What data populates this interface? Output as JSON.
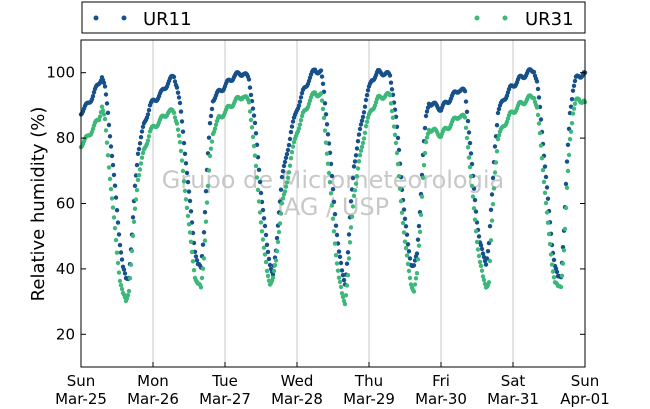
{
  "chart_data": {
    "type": "scatter",
    "ylabel": "Relative humidity (%)",
    "ylim": [
      10,
      110
    ],
    "yticks": [
      20,
      40,
      60,
      80,
      100
    ],
    "xlim": [
      "2018-03-25",
      "2018-04-01"
    ],
    "xticks": [
      {
        "line1": "Sun",
        "line2": "Mar-25"
      },
      {
        "line1": "Mon",
        "line2": "Mar-26"
      },
      {
        "line1": "Tue",
        "line2": "Mar-27"
      },
      {
        "line1": "Wed",
        "line2": "Mar-28"
      },
      {
        "line1": "Thu",
        "line2": "Mar-29"
      },
      {
        "line1": "Fri",
        "line2": "Mar-30"
      },
      {
        "line1": "Sat",
        "line2": "Mar-31"
      },
      {
        "line1": "Sun",
        "line2": "Apr-01"
      }
    ],
    "grid": "vertical",
    "legend_position": "top",
    "watermark": [
      "Grupo de Micrometeorologia",
      "IAG / USP"
    ],
    "series": [
      {
        "name": "UR11",
        "color": "#17508a",
        "points": [
          [
            "2018-03-25 00:00",
            88
          ],
          [
            "2018-03-25 02:00",
            90
          ],
          [
            "2018-03-25 04:00",
            93
          ],
          [
            "2018-03-25 06:00",
            97
          ],
          [
            "2018-03-25 07:00",
            99
          ],
          [
            "2018-03-25 08:00",
            95
          ],
          [
            "2018-03-25 09:00",
            88
          ],
          [
            "2018-03-25 10:00",
            78
          ],
          [
            "2018-03-25 11:00",
            68
          ],
          [
            "2018-03-25 12:00",
            58
          ],
          [
            "2018-03-25 13:00",
            48
          ],
          [
            "2018-03-25 14:00",
            40
          ],
          [
            "2018-03-25 15:00",
            37
          ],
          [
            "2018-03-25 16:00",
            38
          ],
          [
            "2018-03-25 17:00",
            50
          ],
          [
            "2018-03-25 18:00",
            65
          ],
          [
            "2018-03-25 19:00",
            76
          ],
          [
            "2018-03-25 21:00",
            84
          ],
          [
            "2018-03-25 23:00",
            90
          ],
          [
            "2018-03-26 01:00",
            92
          ],
          [
            "2018-03-26 03:00",
            94
          ],
          [
            "2018-03-26 05:00",
            97
          ],
          [
            "2018-03-26 07:00",
            99
          ],
          [
            "2018-03-26 08:00",
            96
          ],
          [
            "2018-03-26 09:00",
            90
          ],
          [
            "2018-03-26 10:00",
            82
          ],
          [
            "2018-03-26 11:00",
            73
          ],
          [
            "2018-03-26 12:00",
            63
          ],
          [
            "2018-03-26 13:00",
            54
          ],
          [
            "2018-03-26 14:00",
            46
          ],
          [
            "2018-03-26 15:00",
            41
          ],
          [
            "2018-03-26 16:00",
            40
          ],
          [
            "2018-03-26 17:00",
            52
          ],
          [
            "2018-03-26 18:00",
            70
          ],
          [
            "2018-03-26 19:00",
            84
          ],
          [
            "2018-03-26 20:00",
            92
          ],
          [
            "2018-03-26 22:00",
            94
          ],
          [
            "2018-03-27 00:00",
            96
          ],
          [
            "2018-03-27 03:00",
            99
          ],
          [
            "2018-03-27 06:00",
            100
          ],
          [
            "2018-03-27 08:00",
            98
          ],
          [
            "2018-03-27 09:00",
            92
          ],
          [
            "2018-03-27 10:00",
            84
          ],
          [
            "2018-03-27 11:00",
            74
          ],
          [
            "2018-03-27 12:00",
            64
          ],
          [
            "2018-03-27 13:00",
            55
          ],
          [
            "2018-03-27 14:00",
            47
          ],
          [
            "2018-03-27 15:00",
            42
          ],
          [
            "2018-03-27 16:00",
            38
          ],
          [
            "2018-03-27 17:00",
            45
          ],
          [
            "2018-03-27 18:00",
            58
          ],
          [
            "2018-03-27 19:00",
            68
          ],
          [
            "2018-03-27 20:00",
            72
          ],
          [
            "2018-03-27 22:00",
            82
          ],
          [
            "2018-03-28 00:00",
            89
          ],
          [
            "2018-03-28 02:00",
            94
          ],
          [
            "2018-03-28 04:00",
            98
          ],
          [
            "2018-03-28 06:00",
            101
          ],
          [
            "2018-03-28 08:00",
            100
          ],
          [
            "2018-03-28 09:00",
            94
          ],
          [
            "2018-03-28 10:00",
            85
          ],
          [
            "2018-03-28 11:00",
            75
          ],
          [
            "2018-03-28 12:00",
            64
          ],
          [
            "2018-03-28 13:00",
            54
          ],
          [
            "2018-03-28 14:00",
            45
          ],
          [
            "2018-03-28 15:00",
            39
          ],
          [
            "2018-03-28 16:00",
            36
          ],
          [
            "2018-03-28 17:00",
            45
          ],
          [
            "2018-03-28 18:00",
            60
          ],
          [
            "2018-03-28 19:00",
            72
          ],
          [
            "2018-03-28 21:00",
            82
          ],
          [
            "2018-03-28 23:00",
            92
          ],
          [
            "2018-03-29 01:00",
            98
          ],
          [
            "2018-03-29 03:00",
            100
          ],
          [
            "2018-03-29 05:00",
            100
          ],
          [
            "2018-03-29 07:00",
            99
          ],
          [
            "2018-03-29 08:00",
            94
          ],
          [
            "2018-03-29 09:00",
            86
          ],
          [
            "2018-03-29 10:00",
            76
          ],
          [
            "2018-03-29 11:00",
            65
          ],
          [
            "2018-03-29 12:00",
            55
          ],
          [
            "2018-03-29 13:00",
            47
          ],
          [
            "2018-03-29 14:00",
            42
          ],
          [
            "2018-03-29 15:00",
            41
          ],
          [
            "2018-03-29 16:00",
            44
          ],
          [
            "2018-03-29 17:00",
            58
          ],
          [
            "2018-03-29 18:00",
            75
          ],
          [
            "2018-03-29 19:00",
            86
          ],
          [
            "2018-03-29 20:00",
            91
          ],
          [
            "2018-03-29 22:00",
            90
          ],
          [
            "2018-03-30 00:00",
            89
          ],
          [
            "2018-03-30 02:00",
            91
          ],
          [
            "2018-03-30 04:00",
            93
          ],
          [
            "2018-03-30 06:00",
            95
          ],
          [
            "2018-03-30 08:00",
            94
          ],
          [
            "2018-03-30 09:00",
            86
          ],
          [
            "2018-03-30 10:00",
            75
          ],
          [
            "2018-03-30 11:00",
            64
          ],
          [
            "2018-03-30 12:00",
            55
          ],
          [
            "2018-03-30 13:00",
            48
          ],
          [
            "2018-03-30 14:00",
            44
          ],
          [
            "2018-03-30 15:00",
            42
          ],
          [
            "2018-03-30 16:00",
            48
          ],
          [
            "2018-03-30 17:00",
            62
          ],
          [
            "2018-03-30 18:00",
            78
          ],
          [
            "2018-03-30 19:00",
            88
          ],
          [
            "2018-03-30 21:00",
            92
          ],
          [
            "2018-03-30 23:00",
            95
          ],
          [
            "2018-03-31 02:00",
            98
          ],
          [
            "2018-03-31 05:00",
            100
          ],
          [
            "2018-03-31 07:00",
            101
          ],
          [
            "2018-03-31 08:00",
            97
          ],
          [
            "2018-03-31 09:00",
            89
          ],
          [
            "2018-03-31 10:00",
            79
          ],
          [
            "2018-03-31 11:00",
            68
          ],
          [
            "2018-03-31 12:00",
            57
          ],
          [
            "2018-03-31 13:00",
            48
          ],
          [
            "2018-03-31 14:00",
            41
          ],
          [
            "2018-03-31 15:00",
            37
          ],
          [
            "2018-03-31 16:00",
            38
          ],
          [
            "2018-03-31 17:00",
            52
          ],
          [
            "2018-03-31 18:00",
            72
          ],
          [
            "2018-03-31 19:00",
            88
          ],
          [
            "2018-03-31 20:00",
            95
          ],
          [
            "2018-03-31 21:00",
            98
          ],
          [
            "2018-03-31 22:00",
            99
          ],
          [
            "2018-04-01 00:00",
            100
          ]
        ]
      },
      {
        "name": "UR31",
        "color": "#3db87a",
        "points": [
          [
            "2018-03-25 00:00",
            78
          ],
          [
            "2018-03-25 02:00",
            80
          ],
          [
            "2018-03-25 04:00",
            83
          ],
          [
            "2018-03-25 06:00",
            86
          ],
          [
            "2018-03-25 07:00",
            90
          ],
          [
            "2018-03-25 08:00",
            85
          ],
          [
            "2018-03-25 09:00",
            75
          ],
          [
            "2018-03-25 10:00",
            65
          ],
          [
            "2018-03-25 11:00",
            55
          ],
          [
            "2018-03-25 12:00",
            45
          ],
          [
            "2018-03-25 13:00",
            37
          ],
          [
            "2018-03-25 14:00",
            32
          ],
          [
            "2018-03-25 15:00",
            30
          ],
          [
            "2018-03-25 16:00",
            34
          ],
          [
            "2018-03-25 17:00",
            45
          ],
          [
            "2018-03-25 18:00",
            58
          ],
          [
            "2018-03-25 19:00",
            68
          ],
          [
            "2018-03-25 21:00",
            76
          ],
          [
            "2018-03-25 23:00",
            82
          ],
          [
            "2018-03-26 01:00",
            84
          ],
          [
            "2018-03-26 03:00",
            86
          ],
          [
            "2018-03-26 05:00",
            88
          ],
          [
            "2018-03-26 07:00",
            88
          ],
          [
            "2018-03-26 08:00",
            85
          ],
          [
            "2018-03-26 09:00",
            78
          ],
          [
            "2018-03-26 10:00",
            70
          ],
          [
            "2018-03-26 11:00",
            62
          ],
          [
            "2018-03-26 12:00",
            53
          ],
          [
            "2018-03-26 13:00",
            45
          ],
          [
            "2018-03-26 14:00",
            38
          ],
          [
            "2018-03-26 15:00",
            35
          ],
          [
            "2018-03-26 16:00",
            34
          ],
          [
            "2018-03-26 17:00",
            44
          ],
          [
            "2018-03-26 18:00",
            60
          ],
          [
            "2018-03-26 19:00",
            74
          ],
          [
            "2018-03-26 20:00",
            82
          ],
          [
            "2018-03-26 22:00",
            86
          ],
          [
            "2018-03-27 00:00",
            88
          ],
          [
            "2018-03-27 03:00",
            91
          ],
          [
            "2018-03-27 06:00",
            93
          ],
          [
            "2018-03-27 08:00",
            91
          ],
          [
            "2018-03-27 09:00",
            84
          ],
          [
            "2018-03-27 10:00",
            74
          ],
          [
            "2018-03-27 11:00",
            64
          ],
          [
            "2018-03-27 12:00",
            55
          ],
          [
            "2018-03-27 13:00",
            46
          ],
          [
            "2018-03-27 14:00",
            39
          ],
          [
            "2018-03-27 15:00",
            36
          ],
          [
            "2018-03-27 16:00",
            37
          ],
          [
            "2018-03-27 17:00",
            42
          ],
          [
            "2018-03-27 18:00",
            52
          ],
          [
            "2018-03-27 19:00",
            60
          ],
          [
            "2018-03-27 20:00",
            63
          ],
          [
            "2018-03-27 22:00",
            74
          ],
          [
            "2018-03-28 00:00",
            82
          ],
          [
            "2018-03-28 02:00",
            87
          ],
          [
            "2018-03-28 04:00",
            91
          ],
          [
            "2018-03-28 06:00",
            94
          ],
          [
            "2018-03-28 08:00",
            93
          ],
          [
            "2018-03-28 09:00",
            86
          ],
          [
            "2018-03-28 10:00",
            76
          ],
          [
            "2018-03-28 11:00",
            66
          ],
          [
            "2018-03-28 12:00",
            55
          ],
          [
            "2018-03-28 13:00",
            45
          ],
          [
            "2018-03-28 14:00",
            37
          ],
          [
            "2018-03-28 15:00",
            32
          ],
          [
            "2018-03-28 16:00",
            30
          ],
          [
            "2018-03-28 17:00",
            38
          ],
          [
            "2018-03-28 18:00",
            52
          ],
          [
            "2018-03-28 19:00",
            63
          ],
          [
            "2018-03-28 21:00",
            74
          ],
          [
            "2018-03-28 23:00",
            84
          ],
          [
            "2018-03-29 01:00",
            89
          ],
          [
            "2018-03-29 03:00",
            92
          ],
          [
            "2018-03-29 05:00",
            93
          ],
          [
            "2018-03-29 07:00",
            93
          ],
          [
            "2018-03-29 08:00",
            87
          ],
          [
            "2018-03-29 09:00",
            78
          ],
          [
            "2018-03-29 10:00",
            68
          ],
          [
            "2018-03-29 11:00",
            58
          ],
          [
            "2018-03-29 12:00",
            48
          ],
          [
            "2018-03-29 13:00",
            41
          ],
          [
            "2018-03-29 14:00",
            36
          ],
          [
            "2018-03-29 15:00",
            33
          ],
          [
            "2018-03-29 16:00",
            38
          ],
          [
            "2018-03-29 17:00",
            52
          ],
          [
            "2018-03-29 18:00",
            68
          ],
          [
            "2018-03-29 19:00",
            78
          ],
          [
            "2018-03-29 20:00",
            83
          ],
          [
            "2018-03-29 22:00",
            82
          ],
          [
            "2018-03-30 00:00",
            81
          ],
          [
            "2018-03-30 02:00",
            83
          ],
          [
            "2018-03-30 04:00",
            85
          ],
          [
            "2018-03-30 06:00",
            87
          ],
          [
            "2018-03-30 08:00",
            86
          ],
          [
            "2018-03-30 09:00",
            78
          ],
          [
            "2018-03-30 10:00",
            68
          ],
          [
            "2018-03-30 11:00",
            58
          ],
          [
            "2018-03-30 12:00",
            49
          ],
          [
            "2018-03-30 13:00",
            42
          ],
          [
            "2018-03-30 14:00",
            37
          ],
          [
            "2018-03-30 15:00",
            35
          ],
          [
            "2018-03-30 16:00",
            36
          ],
          [
            "2018-03-30 17:00",
            54
          ],
          [
            "2018-03-30 18:00",
            70
          ],
          [
            "2018-03-30 19:00",
            80
          ],
          [
            "2018-03-30 21:00",
            84
          ],
          [
            "2018-03-30 23:00",
            87
          ],
          [
            "2018-03-31 02:00",
            90
          ],
          [
            "2018-03-31 05:00",
            92
          ],
          [
            "2018-03-31 07:00",
            93
          ],
          [
            "2018-03-31 08:00",
            89
          ],
          [
            "2018-03-31 09:00",
            81
          ],
          [
            "2018-03-31 10:00",
            71
          ],
          [
            "2018-03-31 11:00",
            60
          ],
          [
            "2018-03-31 12:00",
            50
          ],
          [
            "2018-03-31 13:00",
            42
          ],
          [
            "2018-03-31 14:00",
            36
          ],
          [
            "2018-03-31 15:00",
            34
          ],
          [
            "2018-03-31 16:00",
            35
          ],
          [
            "2018-03-31 17:00",
            46
          ],
          [
            "2018-03-31 18:00",
            64
          ],
          [
            "2018-03-31 19:00",
            80
          ],
          [
            "2018-03-31 20:00",
            88
          ],
          [
            "2018-03-31 21:00",
            91
          ],
          [
            "2018-03-31 22:00",
            92
          ],
          [
            "2018-04-01 00:00",
            91
          ]
        ]
      }
    ]
  }
}
